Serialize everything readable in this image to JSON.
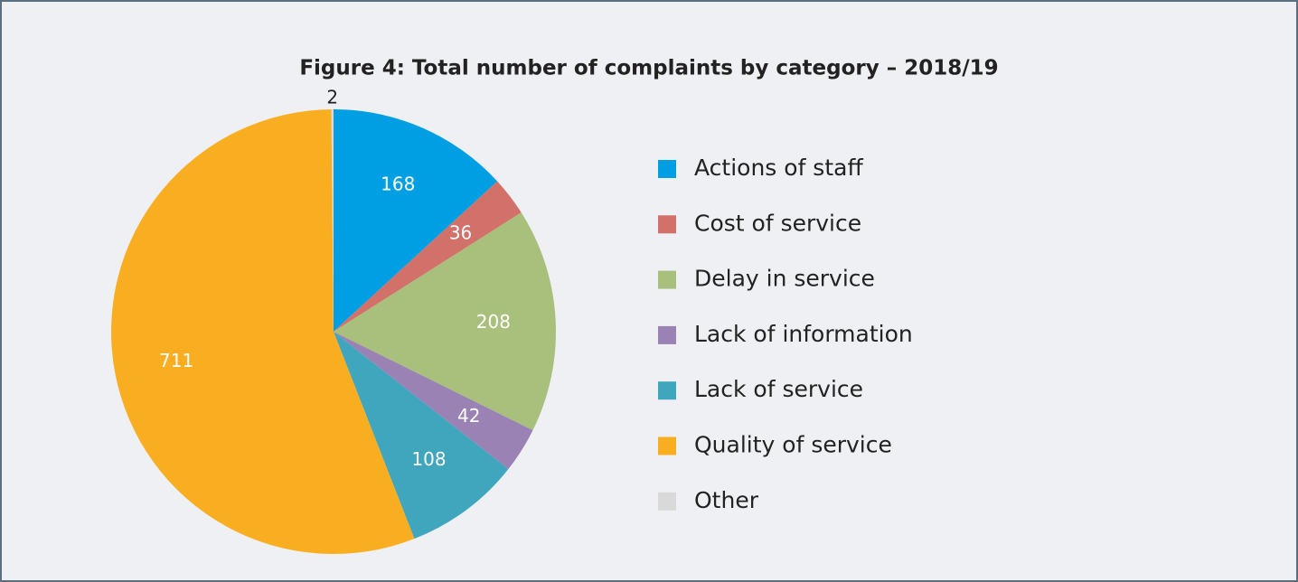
{
  "chart_data": {
    "type": "pie",
    "title": "Figure 4: Total number of complaints by category – 2018/19",
    "categories": [
      "Actions of staff",
      "Cost of service",
      "Delay in service",
      "Lack of information",
      "Lack of service",
      "Quality of service",
      "Other"
    ],
    "values": [
      168,
      36,
      208,
      42,
      108,
      711,
      2
    ],
    "colors": [
      "#009fe3",
      "#d2706a",
      "#a9c07c",
      "#9b82b4",
      "#3fa6bd",
      "#f9ae22",
      "#d9d9d9"
    ],
    "legend": "right"
  }
}
